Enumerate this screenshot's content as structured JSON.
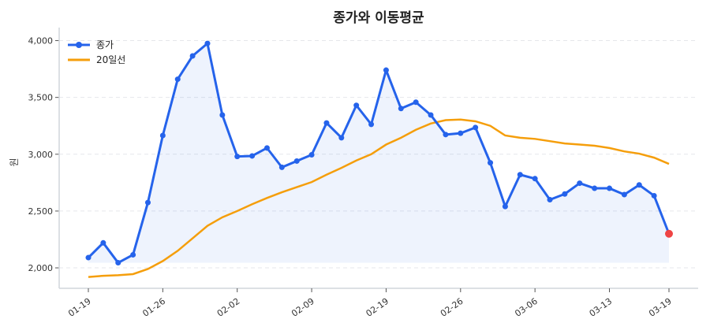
{
  "chart_data": {
    "type": "line",
    "title": "종가와 이동평균",
    "xlabel": "",
    "ylabel": "원",
    "ylim": [
      1820,
      4080
    ],
    "yticks": [
      2000,
      2500,
      3000,
      3500,
      4000
    ],
    "ytick_labels": [
      "2,000",
      "2,500",
      "3,000",
      "3,500",
      "4,000"
    ],
    "grid": true,
    "legend_position": "top-left",
    "x": [
      "01-19",
      "01-20",
      "01-21",
      "01-22",
      "01-23",
      "01-26",
      "01-27",
      "01-28",
      "01-29",
      "01-30",
      "02-02",
      "02-03",
      "02-04",
      "02-05",
      "02-06",
      "02-09",
      "02-10",
      "02-11",
      "02-12",
      "02-13",
      "02-19",
      "02-20",
      "02-23",
      "02-24",
      "02-25",
      "02-26",
      "02-27",
      "03-03",
      "03-04",
      "03-05",
      "03-06",
      "03-09",
      "03-10",
      "03-11",
      "03-12",
      "03-13",
      "03-16",
      "03-17",
      "03-18",
      "03-19"
    ],
    "xtick_labels": [
      "01-19",
      "01-26",
      "02-02",
      "02-09",
      "02-19",
      "02-26",
      "03-06",
      "03-13",
      "03-19"
    ],
    "series": [
      {
        "name": "종가",
        "color": "#2563eb",
        "marker": "circle",
        "fill": true,
        "values": [
          2090,
          2220,
          2045,
          2115,
          2575,
          3165,
          3660,
          3865,
          3975,
          3345,
          2980,
          2985,
          3055,
          2885,
          2940,
          2995,
          3275,
          3145,
          3430,
          3263,
          3740,
          3402,
          3458,
          3345,
          3173,
          3185,
          3235,
          2925,
          2540,
          2820,
          2785,
          2600,
          2650,
          2745,
          2700,
          2700,
          2645,
          2730,
          2635,
          2300
        ]
      },
      {
        "name": "20일선",
        "color": "#f59e0b",
        "values": [
          1920,
          1930,
          1935,
          1945,
          1990,
          2060,
          2150,
          2260,
          2370,
          2445,
          2500,
          2560,
          2615,
          2665,
          2710,
          2755,
          2820,
          2880,
          2945,
          3000,
          3085,
          3145,
          3215,
          3270,
          3300,
          3305,
          3290,
          3250,
          3165,
          3145,
          3135,
          3115,
          3095,
          3085,
          3075,
          3055,
          3025,
          3005,
          2970,
          2915
        ]
      }
    ],
    "highlight_last_point_color": "#ef4444"
  }
}
